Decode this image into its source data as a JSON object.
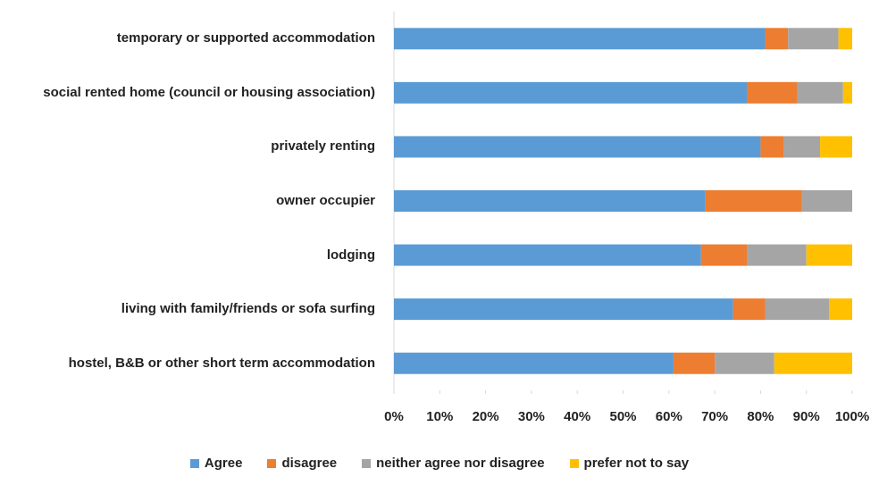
{
  "chart_data": {
    "type": "stacked_barh",
    "categories": [
      "temporary or supported accommodation",
      "social rented home (council or housing association)",
      "privately renting",
      "owner occupier",
      "lodging",
      "living with family/friends or sofa surfing",
      "hostel, B&B or other short term accommodation"
    ],
    "series": [
      {
        "name": "Agree",
        "color": "#5b9bd5",
        "values": [
          81,
          77,
          80,
          68,
          67,
          74,
          61
        ]
      },
      {
        "name": "disagree",
        "color": "#ed7d31",
        "values": [
          5,
          11,
          5,
          21,
          10,
          7,
          9
        ]
      },
      {
        "name": "neither agree nor disagree",
        "color": "#a5a5a5",
        "values": [
          11,
          10,
          8,
          11,
          13,
          14,
          13
        ]
      },
      {
        "name": "prefer not to say",
        "color": "#ffc000",
        "values": [
          3,
          2,
          7,
          0,
          10,
          5,
          17
        ]
      }
    ],
    "xlim": [
      0,
      100
    ],
    "xticks": [
      {
        "value": 0,
        "label": "0%"
      },
      {
        "value": 10,
        "label": "10%"
      },
      {
        "value": 20,
        "label": "20%"
      },
      {
        "value": 30,
        "label": "30%"
      },
      {
        "value": 40,
        "label": "40%"
      },
      {
        "value": 50,
        "label": "50%"
      },
      {
        "value": 60,
        "label": "60%"
      },
      {
        "value": 70,
        "label": "70%"
      },
      {
        "value": 80,
        "label": "80%"
      },
      {
        "value": 90,
        "label": "90%"
      },
      {
        "value": 100,
        "label": "100%"
      }
    ],
    "legend": "bottom"
  }
}
